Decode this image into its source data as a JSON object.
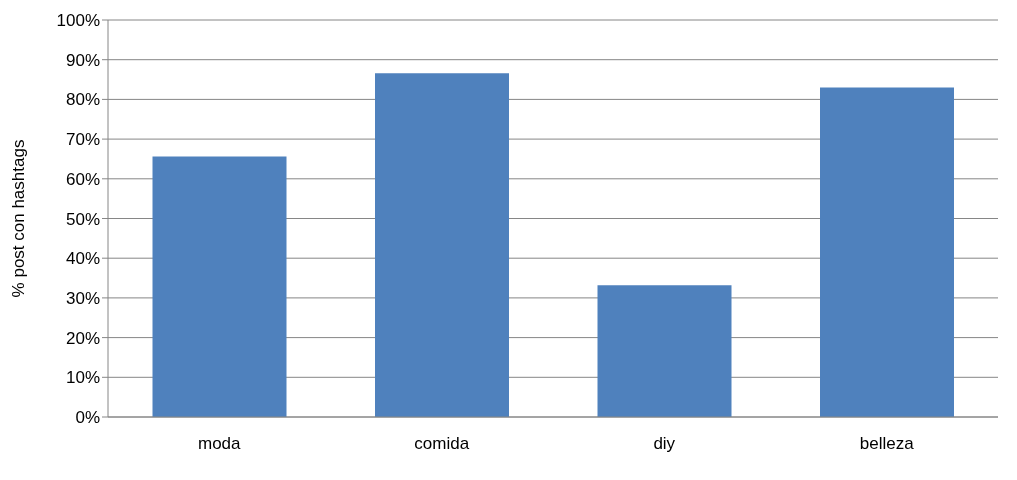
{
  "chart_data": {
    "type": "bar",
    "ylabel": "% post con hashtags",
    "categories": [
      "moda",
      "comida",
      "diy",
      "belleza"
    ],
    "values": [
      65.6,
      86.6,
      33.2,
      83
    ],
    "color": "#4f81bd",
    "ylim": [
      0,
      100
    ],
    "yticks": [
      {
        "value": 0,
        "label": "0%"
      },
      {
        "value": 10,
        "label": "10%"
      },
      {
        "value": 20,
        "label": "20%"
      },
      {
        "value": 30,
        "label": "30%"
      },
      {
        "value": 40,
        "label": "40%"
      },
      {
        "value": 50,
        "label": "50%"
      },
      {
        "value": 60,
        "label": "60%"
      },
      {
        "value": 70,
        "label": "70%"
      },
      {
        "value": 80,
        "label": "80%"
      },
      {
        "value": 90,
        "label": "90%"
      },
      {
        "value": 100,
        "label": "100%"
      }
    ],
    "grid": "y"
  }
}
